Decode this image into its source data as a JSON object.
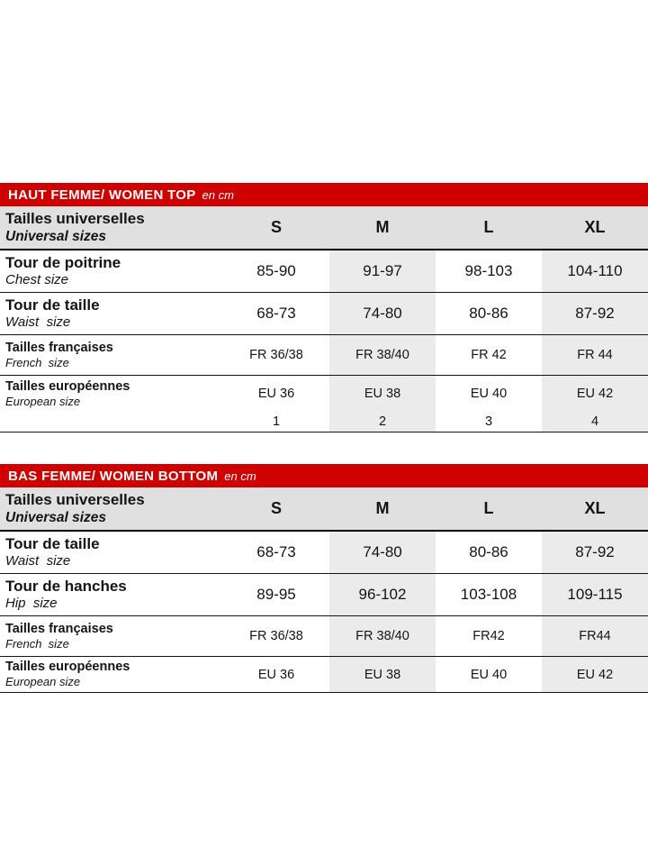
{
  "accent_color": "#cf0000",
  "tables": [
    {
      "title": "HAUT FEMME/ WOMEN TOP",
      "unit": "en cm",
      "header": {
        "label_fr": "Tailles universelles",
        "label_en": "Universal sizes",
        "sizes": [
          "S",
          "M",
          "L",
          "XL"
        ]
      },
      "rows": [
        {
          "label_fr": "Tour de poitrine",
          "label_en": "Chest size",
          "values": [
            "85-90",
            "91-97",
            "98-103",
            "104-110"
          ]
        },
        {
          "label_fr": "Tour de taille",
          "label_en": "Waist  size",
          "values": [
            "68-73",
            "74-80",
            "80-86",
            "87-92"
          ]
        },
        {
          "label_fr": "Tailles françaises",
          "label_en": "French  size",
          "values": [
            "FR 36/38",
            "FR 38/40",
            "FR 42",
            "FR 44"
          ]
        },
        {
          "label_fr": "Tailles européennes",
          "label_en": "European size",
          "values": [
            "EU 36",
            "EU 38",
            "EU 40",
            "EU 42"
          ]
        },
        {
          "label_fr": "",
          "label_en": "",
          "values": [
            "1",
            "2",
            "3",
            "4"
          ]
        }
      ]
    },
    {
      "title": "BAS FEMME/ WOMEN BOTTOM",
      "unit": "en cm",
      "header": {
        "label_fr": "Tailles universelles",
        "label_en": "Universal sizes",
        "sizes": [
          "S",
          "M",
          "L",
          "XL"
        ]
      },
      "rows": [
        {
          "label_fr": "Tour de taille",
          "label_en": "Waist  size",
          "values": [
            "68-73",
            "74-80",
            "80-86",
            "87-92"
          ]
        },
        {
          "label_fr": "Tour de hanches",
          "label_en": "Hip  size",
          "values": [
            "89-95",
            "96-102",
            "103-108",
            "109-115"
          ]
        },
        {
          "label_fr": "Tailles françaises",
          "label_en": "French  size",
          "values": [
            "FR 36/38",
            "FR 38/40",
            "FR42",
            "FR44"
          ]
        },
        {
          "label_fr": "Tailles européennes",
          "label_en": "European size",
          "values": [
            "EU 36",
            "EU 38",
            "EU 40",
            "EU 42"
          ]
        }
      ]
    }
  ]
}
